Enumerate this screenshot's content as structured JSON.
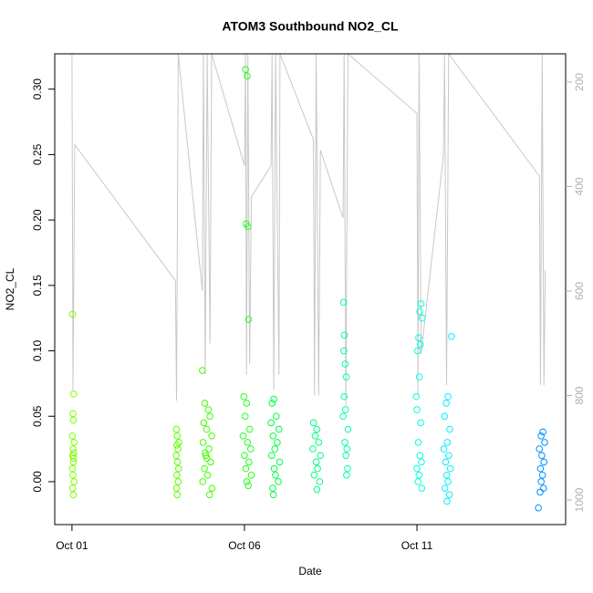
{
  "chart_data": {
    "type": "scatter",
    "title": "ATOM3 Southbound NO2_CL",
    "x_label": "Date",
    "y_label": "NO2_CL",
    "xlim": [
      -0.5,
      14.31
    ],
    "xticks": [
      {
        "value": 0,
        "label": "Oct 01"
      },
      {
        "value": 5,
        "label": "Oct 06"
      },
      {
        "value": 10,
        "label": "Oct 11"
      }
    ],
    "ylim": [
      -0.0328,
      0.327
    ],
    "yticks": [
      {
        "value": 0,
        "label": "0.00"
      },
      {
        "value": 0.05,
        "label": "0.05"
      },
      {
        "value": 0.1,
        "label": "0.10"
      },
      {
        "value": 0.15,
        "label": "0.15"
      },
      {
        "value": 0.2,
        "label": "0.20"
      },
      {
        "value": 0.25,
        "label": "0.25"
      },
      {
        "value": 0.3,
        "label": "0.30"
      }
    ],
    "y2lim": [
      1047,
      146
    ],
    "y2ticks": [
      200,
      400,
      600,
      800,
      1000
    ],
    "series": [
      {
        "color": "#c8c8c8",
        "axis": "y2",
        "x": [
          0,
          0.03,
          0.08,
          3.0,
          3.03,
          3.08,
          3.78,
          3.81,
          3.86,
          3.92,
          4.0,
          4.05,
          5.0,
          5.03,
          5.06,
          5.1,
          5.15,
          5.2,
          5.77,
          5.8,
          5.85,
          5.9,
          6.0,
          6.03,
          7.0,
          7.03,
          7.08,
          7.15,
          7.2,
          7.86,
          7.89,
          7.94,
          8.0,
          10.0,
          10.03,
          10.06,
          10.12,
          10.77,
          10.8,
          10.86,
          10.92,
          13.55,
          13.58,
          13.63,
          13.68,
          13.72
        ],
        "values": [
          146,
          790,
          320,
          580,
          810,
          146,
          600,
          146,
          760,
          146,
          700,
          146,
          360,
          146,
          760,
          146,
          740,
          420,
          360,
          146,
          790,
          146,
          760,
          146,
          310,
          800,
          146,
          800,
          330,
          460,
          146,
          820,
          146,
          260,
          800,
          146,
          720,
          340,
          146,
          780,
          146,
          380,
          780,
          146,
          780,
          560
        ]
      },
      {
        "color": "#80ff00",
        "x": [
          0.02,
          0.05,
          0.03,
          0.04,
          0.01,
          0.06,
          0.03,
          0.02,
          0.05,
          0.04,
          0.01,
          0.03,
          0.06,
          0.02,
          0.04,
          0.05
        ],
        "values": [
          0.128,
          0.067,
          0.052,
          0.047,
          0.035,
          0.03,
          0.025,
          0.02,
          0.018,
          0.015,
          0.01,
          0.005,
          0.0,
          -0.005,
          -0.01,
          0.022
        ]
      },
      {
        "color": "#60ff00",
        "x": [
          3.03,
          3.05,
          3.04,
          3.07,
          3.02,
          3.06,
          3.09,
          3.04,
          3.08,
          3.03,
          3.05,
          3.1
        ],
        "values": [
          0.04,
          0.035,
          0.028,
          0.025,
          0.02,
          0.015,
          0.01,
          0.005,
          0.0,
          -0.005,
          -0.01,
          0.03
        ]
      },
      {
        "color": "#40ff00",
        "x": [
          3.78,
          3.85,
          3.95,
          4.0,
          3.82,
          3.9,
          4.05,
          3.8,
          3.97,
          3.88,
          4.02,
          3.84,
          3.93,
          3.79,
          4.06,
          3.99,
          3.86,
          3.91
        ],
        "values": [
          0.085,
          0.06,
          0.055,
          0.05,
          0.045,
          0.04,
          0.035,
          0.03,
          0.025,
          0.02,
          0.015,
          0.01,
          0.005,
          0.0,
          -0.005,
          -0.01,
          0.022,
          0.018
        ]
      },
      {
        "color": "#20ff20",
        "x": [
          5.03,
          5.08,
          5.05,
          5.1,
          5.12,
          4.98,
          5.06,
          5.02,
          5.15,
          4.96,
          5.09,
          5.18,
          5.0,
          5.13,
          5.04,
          5.2,
          5.07,
          5.11
        ],
        "values": [
          0.315,
          0.31,
          0.197,
          0.195,
          0.124,
          0.065,
          0.06,
          0.05,
          0.04,
          0.035,
          0.03,
          0.025,
          0.02,
          0.015,
          0.01,
          0.005,
          0.0,
          -0.003
        ]
      },
      {
        "color": "#00ff40",
        "x": [
          5.85,
          5.8,
          5.92,
          5.77,
          6.0,
          5.83,
          5.95,
          5.88,
          5.79,
          6.02,
          5.86,
          5.9,
          5.98,
          5.82,
          5.84
        ],
        "values": [
          0.063,
          0.06,
          0.05,
          0.045,
          0.04,
          0.035,
          0.03,
          0.025,
          0.02,
          0.015,
          0.01,
          0.005,
          0.0,
          -0.005,
          -0.01
        ]
      },
      {
        "color": "#00ff80",
        "x": [
          7.0,
          7.1,
          7.05,
          7.15,
          6.98,
          7.2,
          7.08,
          7.12,
          7.02,
          7.18,
          7.1
        ],
        "values": [
          0.045,
          0.04,
          0.035,
          0.03,
          0.025,
          0.02,
          0.015,
          0.01,
          0.005,
          0.0,
          -0.006
        ]
      },
      {
        "color": "#00ffa0",
        "x": [
          7.87,
          7.9,
          7.88,
          7.92,
          7.95,
          7.89,
          7.93,
          7.86,
          8.0,
          7.91,
          7.97,
          7.94,
          7.99,
          7.96
        ],
        "values": [
          0.137,
          0.112,
          0.1,
          0.09,
          0.08,
          0.065,
          0.055,
          0.05,
          0.04,
          0.03,
          0.025,
          0.02,
          0.01,
          0.005
        ]
      },
      {
        "color": "#00ffe0",
        "x": [
          10.12,
          10.08,
          10.15,
          10.05,
          10.1,
          10.02,
          10.07,
          9.98,
          10.0,
          10.11,
          10.04,
          10.09,
          10.13,
          10.0,
          10.06,
          10.03,
          10.14
        ],
        "values": [
          0.136,
          0.13,
          0.125,
          0.11,
          0.105,
          0.1,
          0.08,
          0.065,
          0.055,
          0.045,
          0.03,
          0.02,
          0.015,
          0.01,
          0.005,
          0.0,
          -0.005
        ]
      },
      {
        "color": "#00f0ff",
        "x": [
          11.0,
          10.9,
          10.85,
          10.8,
          10.95,
          10.88,
          10.78,
          10.92,
          10.83,
          10.97,
          10.86,
          10.9,
          10.81,
          10.94,
          10.87
        ],
        "values": [
          0.111,
          0.065,
          0.06,
          0.05,
          0.04,
          0.03,
          0.025,
          0.02,
          0.015,
          0.01,
          0.005,
          0.0,
          -0.005,
          -0.01,
          -0.015
        ]
      },
      {
        "color": "#0090ff",
        "x": [
          13.65,
          13.6,
          13.7,
          13.55,
          13.62,
          13.68,
          13.58,
          13.64,
          13.6,
          13.67,
          13.57,
          13.52
        ],
        "values": [
          0.038,
          0.035,
          0.03,
          0.025,
          0.02,
          0.015,
          0.01,
          0.005,
          0.0,
          -0.005,
          -0.008,
          -0.02
        ]
      }
    ]
  }
}
